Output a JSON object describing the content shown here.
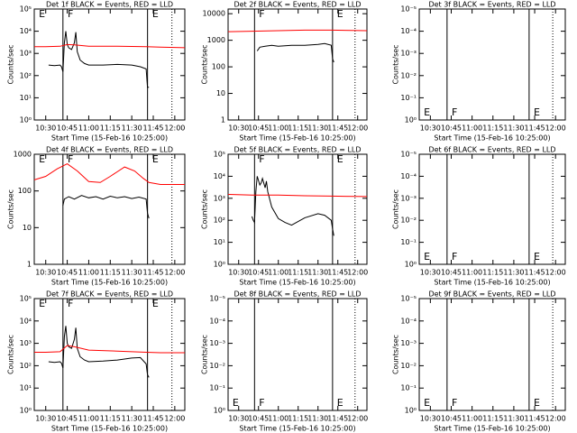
{
  "chart_data": [
    {
      "type": "line",
      "title": "Det 1f BLACK = Events, RED = LLD",
      "xlabel": "Start Time (15-Feb-16 10:25:00)",
      "ylabel": "Counts/sec",
      "log_y": true,
      "xlim": [
        "10:22",
        "12:07"
      ],
      "xticks": [
        "10:30",
        "10:45",
        "11:00",
        "11:15",
        "11:30",
        "11:45",
        "12:00"
      ],
      "ylim": [
        1,
        100000
      ],
      "yticks": [
        {
          "value": 1,
          "label": "10⁰"
        },
        {
          "value": 10,
          "label": "10¹"
        },
        {
          "value": 100,
          "label": "10²"
        },
        {
          "value": 1000,
          "label": "10³"
        },
        {
          "value": 10000,
          "label": "10⁴"
        },
        {
          "value": 100000,
          "label": "10⁵"
        }
      ],
      "vlines": [
        {
          "x": "10:42",
          "style": "solid"
        },
        {
          "x": "11:41",
          "style": "solid"
        },
        {
          "x": "11:58",
          "style": "dotted"
        }
      ],
      "markers": [
        {
          "x": "10:24",
          "label": "E"
        },
        {
          "x": "10:44",
          "label": "F"
        },
        {
          "x": "11:43",
          "label": "E"
        }
      ],
      "marker_position": "top",
      "series": [
        {
          "color": "#000000",
          "x": [
            "10:32",
            "10:36",
            "10:40",
            "10:41",
            "10:42",
            "10:43",
            "10:44",
            "10:45",
            "10:46",
            "10:48",
            "10:50",
            "10:51",
            "10:52",
            "10:54",
            "10:57",
            "11:00",
            "11:10",
            "11:20",
            "11:30",
            "11:36",
            "11:40",
            "11:41",
            "11:42"
          ],
          "values": [
            300,
            280,
            300,
            250,
            150,
            3000,
            10000,
            2500,
            1800,
            1500,
            3000,
            9000,
            1200,
            500,
            350,
            300,
            300,
            320,
            300,
            250,
            200,
            30,
            30
          ]
        },
        {
          "color": "#ff0000",
          "x": [
            "10:22",
            "10:30",
            "10:40",
            "10:45",
            "10:50",
            "11:00",
            "11:20",
            "11:40",
            "11:50",
            "12:07"
          ],
          "values": [
            2000,
            2000,
            2100,
            2500,
            2400,
            2100,
            2100,
            2000,
            1900,
            1800
          ]
        }
      ]
    },
    {
      "type": "line",
      "title": "Det 2f BLACK = Events, RED = LLD",
      "xlabel": "Start Time (15-Feb-16 10:25:00)",
      "ylabel": "Counts/sec",
      "log_y": true,
      "xlim": [
        "10:22",
        "12:07"
      ],
      "xticks": [
        "10:30",
        "10:45",
        "11:00",
        "11:15",
        "11:30",
        "11:45",
        "12:00"
      ],
      "ylim": [
        1,
        15000
      ],
      "yticks": [
        1,
        10,
        100,
        1000,
        10000
      ],
      "vlines": [
        {
          "x": "10:42",
          "style": "solid"
        },
        {
          "x": "11:41",
          "style": "solid"
        },
        {
          "x": "11:58",
          "style": "dotted"
        }
      ],
      "markers": [
        {
          "x": "10:44",
          "label": "F"
        },
        {
          "x": "11:43",
          "label": "E"
        }
      ],
      "marker_position": "top",
      "series": [
        {
          "color": "#000000",
          "x": [
            "10:44",
            "10:46",
            "10:50",
            "10:55",
            "11:00",
            "11:10",
            "11:20",
            "11:30",
            "11:35",
            "11:40",
            "11:41",
            "11:42"
          ],
          "values": [
            400,
            550,
            600,
            650,
            600,
            650,
            650,
            700,
            750,
            650,
            200,
            150
          ]
        },
        {
          "color": "#ff0000",
          "x": [
            "10:22",
            "10:40",
            "11:00",
            "11:20",
            "11:40",
            "12:07"
          ],
          "values": [
            2100,
            2200,
            2300,
            2400,
            2400,
            2300
          ]
        }
      ]
    },
    {
      "type": "line",
      "title": "Det 3f BLACK = Events, RED = LLD",
      "xlabel": "Start Time (15-Feb-16 10:25:00)",
      "ylabel": "Counts/sec",
      "log_y": true,
      "xlim": [
        "10:22",
        "12:07"
      ],
      "xticks": [
        "10:30",
        "10:45",
        "11:00",
        "11:15",
        "11:30",
        "11:45",
        "12:00"
      ],
      "ylim": [
        1,
        1e-05
      ],
      "yticks": [
        {
          "value": 1,
          "label": "10⁰"
        },
        {
          "value": 0.1,
          "label": "10⁻¹"
        },
        {
          "value": 0.01,
          "label": "10⁻²"
        },
        {
          "value": 0.001,
          "label": "10⁻³"
        },
        {
          "value": 0.0001,
          "label": "10⁻⁴"
        },
        {
          "value": 1e-05,
          "label": "10⁻⁵"
        }
      ],
      "vlines": [
        {
          "x": "10:42",
          "style": "solid"
        },
        {
          "x": "11:41",
          "style": "solid"
        },
        {
          "x": "11:58",
          "style": "dotted"
        }
      ],
      "markers": [
        {
          "x": "10:24",
          "label": "E"
        },
        {
          "x": "10:44",
          "label": "F"
        },
        {
          "x": "11:43",
          "label": "E"
        }
      ],
      "marker_position": "bottom",
      "series": []
    },
    {
      "type": "line",
      "title": "Det 4f BLACK = Events, RED = LLD",
      "xlabel": "Start Time (15-Feb-16 10:25:00)",
      "ylabel": "Counts/sec",
      "log_y": true,
      "xlim": [
        "10:22",
        "12:07"
      ],
      "xticks": [
        "10:30",
        "10:45",
        "11:00",
        "11:15",
        "11:30",
        "11:45",
        "12:00"
      ],
      "ylim": [
        1,
        1000
      ],
      "yticks": [
        1,
        10,
        100,
        1000
      ],
      "vlines": [
        {
          "x": "10:42",
          "style": "solid"
        },
        {
          "x": "11:41",
          "style": "solid"
        },
        {
          "x": "11:58",
          "style": "dotted"
        }
      ],
      "markers": [
        {
          "x": "10:24",
          "label": "E"
        },
        {
          "x": "10:44",
          "label": "F"
        },
        {
          "x": "11:43",
          "label": "E"
        }
      ],
      "marker_position": "top",
      "series": [
        {
          "color": "#000000",
          "x": [
            "10:42",
            "10:43",
            "10:46",
            "10:50",
            "10:55",
            "11:00",
            "11:05",
            "11:10",
            "11:15",
            "11:20",
            "11:25",
            "11:30",
            "11:35",
            "11:40",
            "11:41",
            "11:42"
          ],
          "values": [
            40,
            60,
            70,
            60,
            75,
            65,
            70,
            60,
            72,
            65,
            70,
            62,
            68,
            60,
            25,
            18
          ]
        },
        {
          "color": "#ff0000",
          "x": [
            "10:22",
            "10:30",
            "10:38",
            "10:45",
            "10:52",
            "11:00",
            "11:08",
            "11:15",
            "11:25",
            "11:32",
            "11:38",
            "11:42",
            "11:50",
            "12:07"
          ],
          "values": [
            200,
            250,
            400,
            550,
            350,
            180,
            170,
            250,
            450,
            350,
            220,
            170,
            150,
            150
          ]
        }
      ]
    },
    {
      "type": "line",
      "title": "Det 5f BLACK = Events, RED = LLD",
      "xlabel": "Start Time (15-Feb-16 10:25:00)",
      "ylabel": "Counts/sec",
      "log_y": true,
      "xlim": [
        "10:22",
        "12:07"
      ],
      "xticks": [
        "10:30",
        "10:45",
        "11:00",
        "11:15",
        "11:30",
        "11:45",
        "12:00"
      ],
      "ylim": [
        1,
        100000
      ],
      "yticks": [
        {
          "value": 1,
          "label": "10⁰"
        },
        {
          "value": 10,
          "label": "10¹"
        },
        {
          "value": 100,
          "label": "10²"
        },
        {
          "value": 1000,
          "label": "10³"
        },
        {
          "value": 10000,
          "label": "10⁴"
        },
        {
          "value": 100000,
          "label": "10⁵"
        }
      ],
      "vlines": [
        {
          "x": "10:42",
          "style": "solid"
        },
        {
          "x": "11:41",
          "style": "solid"
        },
        {
          "x": "11:58",
          "style": "dotted"
        }
      ],
      "markers": [
        {
          "x": "10:44",
          "label": "F"
        },
        {
          "x": "11:43",
          "label": "E"
        }
      ],
      "marker_position": "top",
      "series": [
        {
          "color": "#000000",
          "x": [
            "10:40",
            "10:41",
            "10:42",
            "10:43",
            "10:44",
            "10:46",
            "10:47",
            "10:48",
            "10:50",
            "10:51",
            "10:52",
            "10:55",
            "11:00",
            "11:05",
            "11:10",
            "11:20",
            "11:30",
            "11:35",
            "11:40",
            "11:41",
            "11:42"
          ],
          "values": [
            150,
            100,
            80,
            2000,
            10000,
            4000,
            5000,
            8000,
            3000,
            6000,
            2000,
            400,
            120,
            80,
            60,
            130,
            200,
            170,
            100,
            40,
            20
          ]
        },
        {
          "color": "#ff0000",
          "x": [
            "10:22",
            "10:40",
            "11:00",
            "11:20",
            "11:40",
            "12:07"
          ],
          "values": [
            1500,
            1400,
            1400,
            1300,
            1250,
            1200
          ]
        }
      ]
    },
    {
      "type": "line",
      "title": "Det 6f BLACK = Events, RED = LLD",
      "xlabel": "Start Time (15-Feb-16 10:25:00)",
      "ylabel": "Counts/sec",
      "log_y": true,
      "xlim": [
        "10:22",
        "12:07"
      ],
      "xticks": [
        "10:30",
        "10:45",
        "11:00",
        "11:15",
        "11:30",
        "11:45",
        "12:00"
      ],
      "ylim": [
        1,
        1e-05
      ],
      "yticks": [
        {
          "value": 1,
          "label": "10⁰"
        },
        {
          "value": 0.1,
          "label": "10⁻¹"
        },
        {
          "value": 0.01,
          "label": "10⁻²"
        },
        {
          "value": 0.001,
          "label": "10⁻³"
        },
        {
          "value": 0.0001,
          "label": "10⁻⁴"
        },
        {
          "value": 1e-05,
          "label": "10⁻⁵"
        }
      ],
      "vlines": [
        {
          "x": "10:42",
          "style": "solid"
        },
        {
          "x": "11:41",
          "style": "solid"
        },
        {
          "x": "11:58",
          "style": "dotted"
        }
      ],
      "markers": [
        {
          "x": "10:24",
          "label": "E"
        },
        {
          "x": "10:44",
          "label": "F"
        },
        {
          "x": "11:43",
          "label": "E"
        }
      ],
      "marker_position": "bottom",
      "series": []
    },
    {
      "type": "line",
      "title": "Det 7f BLACK = Events, RED = LLD",
      "xlabel": "Start Time (15-Feb-16 10:25:00)",
      "ylabel": "Counts/sec",
      "log_y": true,
      "xlim": [
        "10:22",
        "12:07"
      ],
      "xticks": [
        "10:30",
        "10:45",
        "11:00",
        "11:15",
        "11:30",
        "11:45",
        "12:00"
      ],
      "ylim": [
        1,
        100000
      ],
      "yticks": [
        {
          "value": 1,
          "label": "10⁰"
        },
        {
          "value": 10,
          "label": "10¹"
        },
        {
          "value": 100,
          "label": "10²"
        },
        {
          "value": 1000,
          "label": "10³"
        },
        {
          "value": 10000,
          "label": "10⁴"
        },
        {
          "value": 100000,
          "label": "10⁵"
        }
      ],
      "vlines": [
        {
          "x": "10:42",
          "style": "solid"
        },
        {
          "x": "11:41",
          "style": "solid"
        },
        {
          "x": "11:58",
          "style": "dotted"
        }
      ],
      "markers": [
        {
          "x": "10:24",
          "label": "E"
        },
        {
          "x": "10:44",
          "label": "F"
        },
        {
          "x": "11:43",
          "label": "E"
        }
      ],
      "marker_position": "top",
      "series": [
        {
          "color": "#000000",
          "x": [
            "10:32",
            "10:36",
            "10:40",
            "10:41",
            "10:42",
            "10:43",
            "10:44",
            "10:45",
            "10:46",
            "10:48",
            "10:50",
            "10:51",
            "10:52",
            "10:54",
            "10:57",
            "11:00",
            "11:10",
            "11:20",
            "11:30",
            "11:36",
            "11:40",
            "11:41",
            "11:42"
          ],
          "values": [
            150,
            140,
            150,
            130,
            80,
            2000,
            6000,
            1000,
            700,
            600,
            1500,
            5000,
            600,
            250,
            180,
            150,
            160,
            180,
            220,
            230,
            120,
            40,
            30
          ]
        },
        {
          "color": "#ff0000",
          "x": [
            "10:22",
            "10:30",
            "10:40",
            "10:45",
            "10:50",
            "11:00",
            "11:20",
            "11:40",
            "11:50",
            "12:07"
          ],
          "values": [
            400,
            400,
            420,
            800,
            700,
            500,
            450,
            400,
            380,
            380
          ]
        }
      ]
    },
    {
      "type": "line",
      "title": "Det 8f BLACK = Events, RED = LLD",
      "xlabel": "Start Time (15-Feb-16 10:25:00)",
      "ylabel": "Counts/sec",
      "log_y": true,
      "xlim": [
        "10:22",
        "12:07"
      ],
      "xticks": [
        "10:30",
        "10:45",
        "11:00",
        "11:15",
        "11:30",
        "11:45",
        "12:00"
      ],
      "ylim": [
        1,
        1e-05
      ],
      "yticks": [
        {
          "value": 1,
          "label": "10⁰"
        },
        {
          "value": 0.1,
          "label": "10⁻¹"
        },
        {
          "value": 0.01,
          "label": "10⁻²"
        },
        {
          "value": 0.001,
          "label": "10⁻³"
        },
        {
          "value": 0.0001,
          "label": "10⁻⁴"
        },
        {
          "value": 1e-05,
          "label": "10⁻⁵"
        }
      ],
      "vlines": [
        {
          "x": "10:42",
          "style": "solid"
        },
        {
          "x": "11:41",
          "style": "solid"
        },
        {
          "x": "11:58",
          "style": "dotted"
        }
      ],
      "markers": [
        {
          "x": "10:24",
          "label": "E"
        },
        {
          "x": "10:44",
          "label": "F"
        },
        {
          "x": "11:43",
          "label": "E"
        }
      ],
      "marker_position": "bottom",
      "series": []
    },
    {
      "type": "line",
      "title": "Det 9f BLACK = Events, RED = LLD",
      "xlabel": "Start Time (15-Feb-16 10:25:00)",
      "ylabel": "Counts/sec",
      "log_y": true,
      "xlim": [
        "10:22",
        "12:07"
      ],
      "xticks": [
        "10:30",
        "10:45",
        "11:00",
        "11:15",
        "11:30",
        "11:45",
        "12:00"
      ],
      "ylim": [
        1,
        1e-05
      ],
      "yticks": [
        {
          "value": 1,
          "label": "10⁰"
        },
        {
          "value": 0.1,
          "label": "10⁻¹"
        },
        {
          "value": 0.01,
          "label": "10⁻²"
        },
        {
          "value": 0.001,
          "label": "10⁻³"
        },
        {
          "value": 0.0001,
          "label": "10⁻⁴"
        },
        {
          "value": 1e-05,
          "label": "10⁻⁵"
        }
      ],
      "vlines": [
        {
          "x": "10:42",
          "style": "solid"
        },
        {
          "x": "11:41",
          "style": "solid"
        },
        {
          "x": "11:58",
          "style": "dotted"
        }
      ],
      "markers": [
        {
          "x": "10:24",
          "label": "E"
        },
        {
          "x": "10:44",
          "label": "F"
        },
        {
          "x": "11:43",
          "label": "E"
        }
      ],
      "marker_position": "bottom",
      "series": []
    }
  ]
}
